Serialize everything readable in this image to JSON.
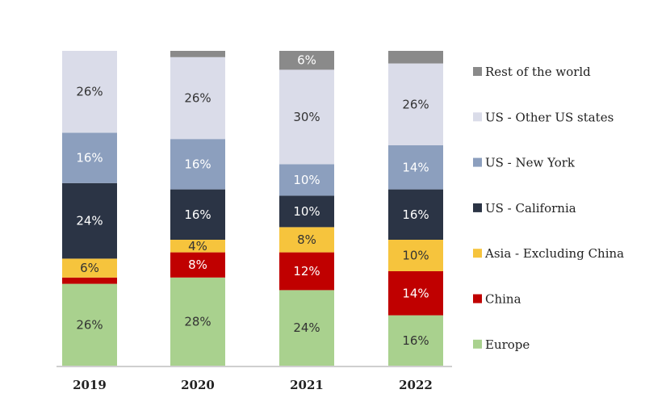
{
  "chart_data": {
    "type": "bar",
    "stacked": true,
    "categories": [
      "2019",
      "2020",
      "2021",
      "2022"
    ],
    "ylim": [
      0,
      100
    ],
    "grid": false,
    "legend_position": "right",
    "series": [
      {
        "name": "Europe",
        "color": "#a9d18e",
        "values": [
          26,
          28,
          24,
          16
        ],
        "labels": [
          "26%",
          "28%",
          "24%",
          "16%"
        ],
        "label_color": "#333333"
      },
      {
        "name": "China",
        "color": "#c00000",
        "values": [
          2,
          8,
          12,
          14
        ],
        "labels": [
          "",
          "8%",
          "12%",
          "14%"
        ],
        "label_color": "#ffffff"
      },
      {
        "name": "Asia - Excluding China",
        "color": "#f6c43d",
        "values": [
          6,
          4,
          8,
          10
        ],
        "labels": [
          "6%",
          "4%",
          "8%",
          "10%"
        ],
        "label_color": "#333333"
      },
      {
        "name": "US - California",
        "color": "#2b3445",
        "values": [
          24,
          16,
          10,
          16
        ],
        "labels": [
          "24%",
          "16%",
          "10%",
          "16%"
        ],
        "label_color": "#ffffff"
      },
      {
        "name": "US - New York",
        "color": "#8c9fbe",
        "values": [
          16,
          16,
          10,
          14
        ],
        "labels": [
          "16%",
          "16%",
          "10%",
          "14%"
        ],
        "label_color": "#ffffff"
      },
      {
        "name": "US - Other US states",
        "color": "#dadce9",
        "values": [
          26,
          26,
          30,
          26
        ],
        "labels": [
          "26%",
          "26%",
          "30%",
          "26%"
        ],
        "label_color": "#333333"
      },
      {
        "name": "Rest of the world",
        "color": "#8a8a8a",
        "values": [
          0,
          2,
          6,
          4
        ],
        "labels": [
          "",
          "",
          "6%",
          ""
        ],
        "label_color": "#ffffff"
      }
    ]
  }
}
